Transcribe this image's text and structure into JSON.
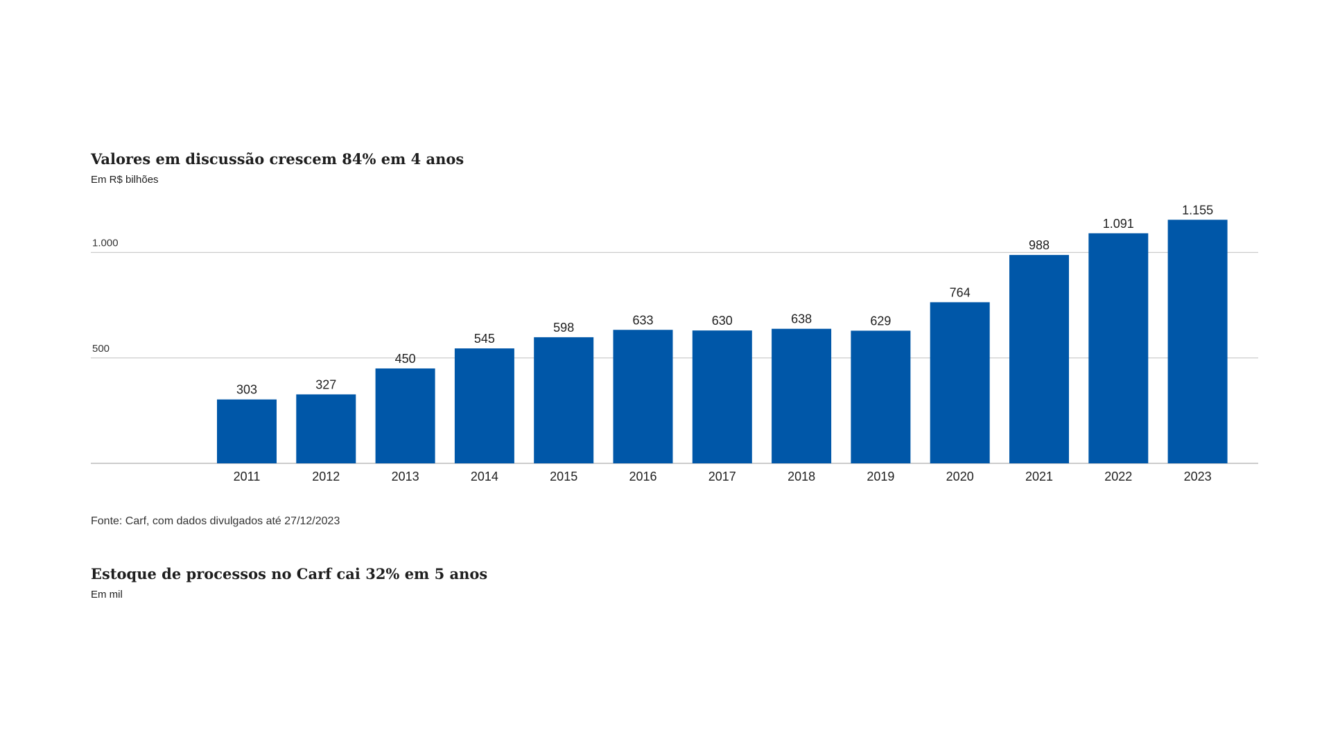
{
  "chart": {
    "title": "Valores em discussão crescem 84% em 4 anos",
    "subtitle": "Em R$ bilhões",
    "source": "Fonte: Carf, com dados divulgados até 27/12/2023"
  },
  "second_chart": {
    "title": "Estoque de processos no Carf cai 32% em 5 anos",
    "subtitle": "Em mil"
  },
  "chart_data": {
    "type": "bar",
    "title": "Valores em discussão crescem 84% em 4 anos",
    "subtitle": "Em R$ bilhões",
    "categories": [
      "2011",
      "2012",
      "2013",
      "2014",
      "2015",
      "2016",
      "2017",
      "2018",
      "2019",
      "2020",
      "2021",
      "2022",
      "2023"
    ],
    "values": [
      303,
      327,
      450,
      545,
      598,
      633,
      630,
      638,
      629,
      764,
      988,
      1091,
      1155
    ],
    "value_labels": [
      "303",
      "327",
      "450",
      "545",
      "598",
      "633",
      "630",
      "638",
      "629",
      "764",
      "988",
      "1.091",
      "1.155"
    ],
    "yticks": [
      500,
      1000
    ],
    "ytick_labels": [
      "500",
      "1.000"
    ],
    "ylim": [
      0,
      1155
    ],
    "grid": true,
    "bar_color": "#0057a8",
    "gridline_color": "#cccccc"
  }
}
